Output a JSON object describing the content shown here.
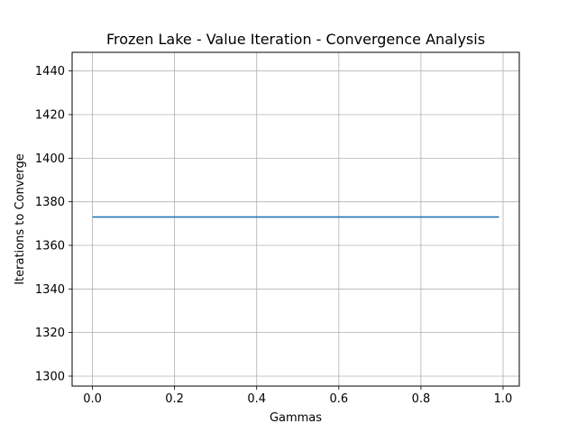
{
  "chart_data": {
    "type": "line",
    "title": "Frozen Lake - Value Iteration - Convergence Analysis",
    "xlabel": "Gammas",
    "ylabel": "Iterations to Converge",
    "xlim": [
      -0.0495,
      1.0395
    ],
    "ylim": [
      1295.44,
      1448.56
    ],
    "grid": true,
    "x_ticks": [
      {
        "value": 0.0,
        "label": "0.0"
      },
      {
        "value": 0.2,
        "label": "0.2"
      },
      {
        "value": 0.4,
        "label": "0.4"
      },
      {
        "value": 0.6,
        "label": "0.6"
      },
      {
        "value": 0.8,
        "label": "0.8"
      },
      {
        "value": 1.0,
        "label": "1.0"
      }
    ],
    "y_ticks": [
      {
        "value": 1300,
        "label": "1300"
      },
      {
        "value": 1320,
        "label": "1320"
      },
      {
        "value": 1340,
        "label": "1340"
      },
      {
        "value": 1360,
        "label": "1360"
      },
      {
        "value": 1380,
        "label": "1380"
      },
      {
        "value": 1400,
        "label": "1400"
      },
      {
        "value": 1420,
        "label": "1420"
      },
      {
        "value": 1440,
        "label": "1440"
      }
    ],
    "series": [
      {
        "color": "#1f77b4",
        "x": [
          0.0,
          0.99
        ],
        "y": [
          1373,
          1373
        ]
      }
    ]
  }
}
